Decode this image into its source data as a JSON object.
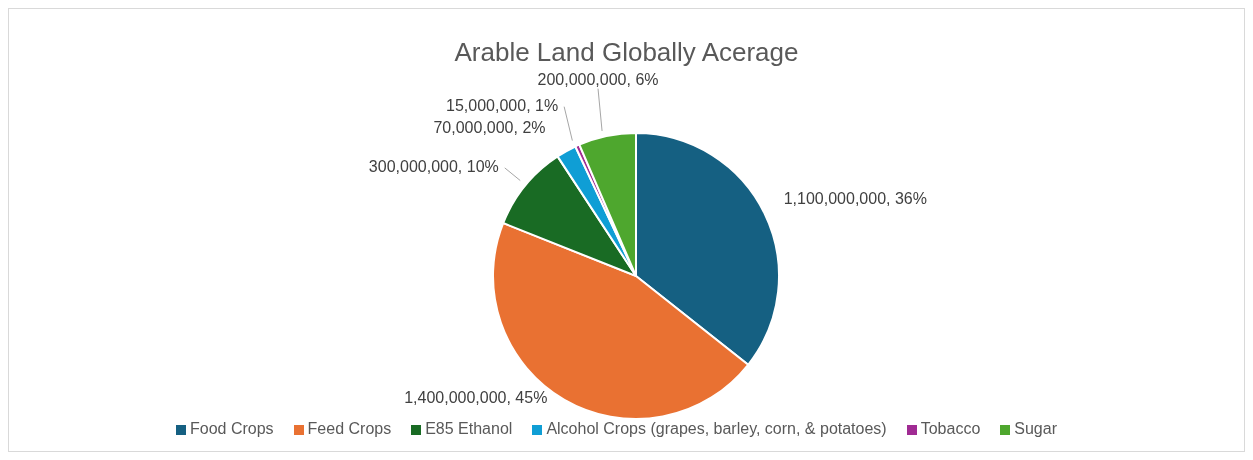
{
  "chart_data": {
    "type": "pie",
    "title": "Arable Land Globally Acerage",
    "categories": [
      "Food Crops",
      "Feed Crops",
      "E85 Ethanol",
      "Alcohol Crops (grapes, barley, corn, & potatoes)",
      "Tobacco",
      "Sugar"
    ],
    "values": [
      1100000000,
      1400000000,
      300000000,
      70000000,
      15000000,
      200000000
    ],
    "colors": [
      "#156082",
      "#e97132",
      "#196b24",
      "#0f9ed5",
      "#a02b93",
      "#4ea72e"
    ],
    "value_labels": [
      "1,100,000,000, 36%",
      "1,400,000,000, 45%",
      "300,000,000, 10%",
      "70,000,000, 2%",
      "15,000,000, 1%",
      "200,000,000, 6%"
    ],
    "legend": "bottom"
  }
}
